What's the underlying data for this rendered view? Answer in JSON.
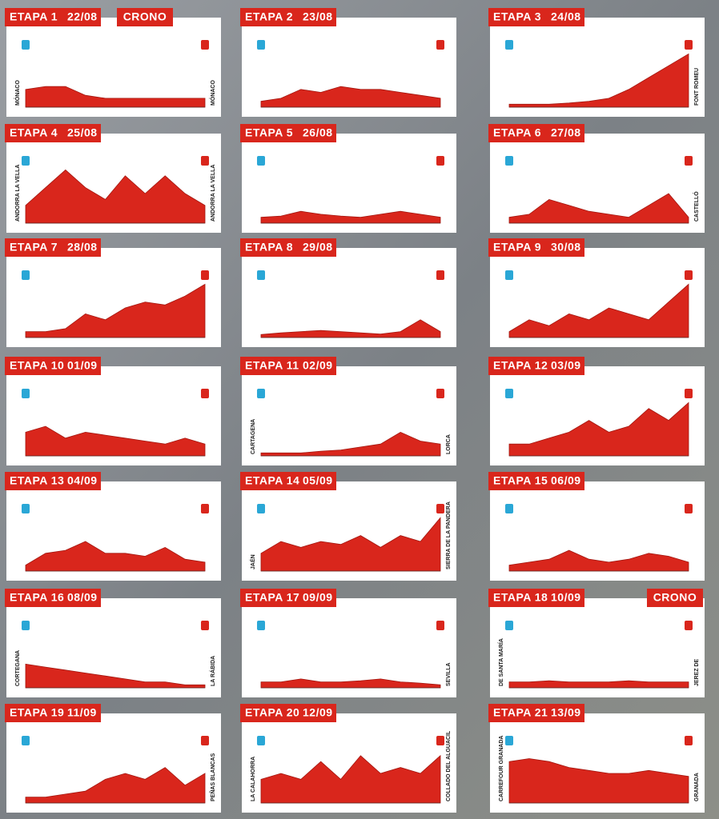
{
  "stages": [
    {
      "label": "ETAPA 1",
      "date": "22/08",
      "badge": "CRONO",
      "start": "MÓNACO",
      "finish": "MÓNACO"
    },
    {
      "label": "ETAPA 2",
      "date": "23/08"
    },
    {
      "label": "ETAPA 3",
      "date": "24/08",
      "finish": "FONT ROMEU"
    },
    {
      "label": "ETAPA 4",
      "date": "25/08",
      "start": "ANDORRA LA VELLA",
      "finish": "ANDORRA LA VELLA"
    },
    {
      "label": "ETAPA 5",
      "date": "26/08"
    },
    {
      "label": "ETAPA 6",
      "date": "27/08",
      "finish": "CASTELLÓ"
    },
    {
      "label": "ETAPA 7",
      "date": "28/08"
    },
    {
      "label": "ETAPA 8",
      "date": "29/08"
    },
    {
      "label": "ETAPA 9",
      "date": "30/08"
    },
    {
      "label": "ETAPA 10",
      "date": "01/09"
    },
    {
      "label": "ETAPA 11",
      "date": "02/09",
      "start": "CARTAGENA",
      "finish": "LORCA"
    },
    {
      "label": "ETAPA 12",
      "date": "03/09"
    },
    {
      "label": "ETAPA 13",
      "date": "04/09"
    },
    {
      "label": "ETAPA 14",
      "date": "05/09",
      "start": "JAÉN",
      "finish": "SIERRA DE LA PANDERA"
    },
    {
      "label": "ETAPA 15",
      "date": "06/09"
    },
    {
      "label": "ETAPA 16",
      "date": "08/09",
      "start": "CORTEGANA",
      "finish": "LA RÁBIDA"
    },
    {
      "label": "ETAPA 17",
      "date": "09/09",
      "finish": "SEVILLA"
    },
    {
      "label": "ETAPA 18",
      "date": "10/09",
      "badge": "CRONO",
      "start": "DE SANTA MARÍA",
      "finish": "JEREZ DE"
    },
    {
      "label": "ETAPA 19",
      "date": "11/09",
      "finish": "PEÑAS BLANCAS"
    },
    {
      "label": "ETAPA 20",
      "date": "12/09",
      "start": "LA CALAHORRA",
      "finish": "COLLADO DEL ALGUACIL"
    },
    {
      "label": "ETAPA 21",
      "date": "13/09",
      "start": "CARREFOUR GRANADA",
      "finish": "GRANADA"
    }
  ]
}
